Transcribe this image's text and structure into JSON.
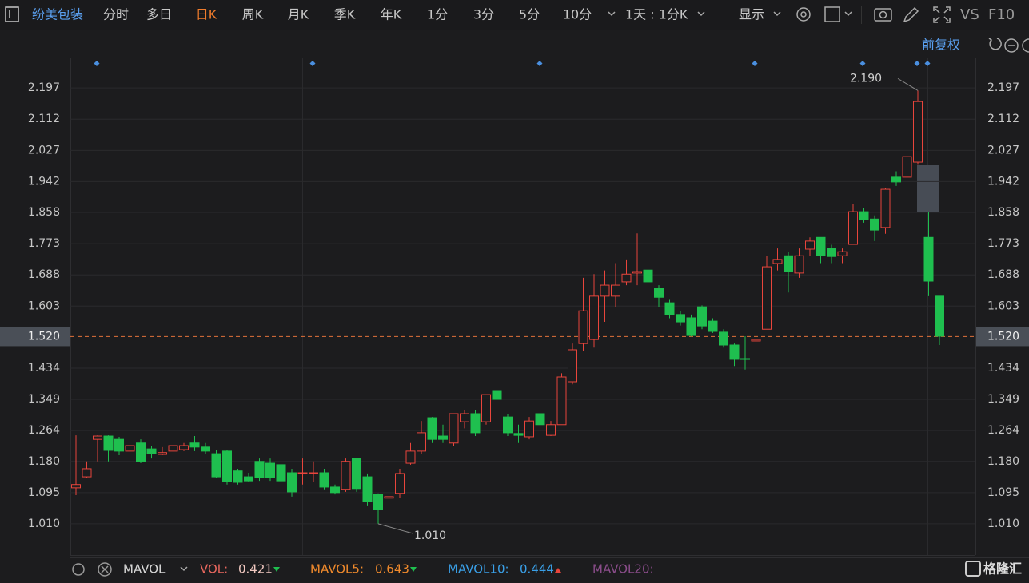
{
  "toolbar": {
    "stock": "纷美包装",
    "periods": [
      "分时",
      "多日",
      "日K",
      "周K",
      "月K",
      "季K",
      "年K",
      "1分",
      "3分",
      "5分",
      "10分"
    ],
    "active": 2,
    "interval": "1天 : 1分K",
    "display": "显示",
    "vs": "VS",
    "f10": "F10"
  },
  "adjust": "前复权",
  "chart_data": {
    "type": "candlestick",
    "up_color": "#e8453c",
    "down_color": "#1fbf4f",
    "grid": true,
    "ylim": [
      0.925,
      2.28
    ],
    "yticks": [
      2.197,
      2.112,
      2.027,
      1.942,
      1.858,
      1.773,
      1.688,
      1.603,
      {
        "value": 1.52,
        "label": "1.520"
      },
      1.434,
      1.349,
      1.264,
      {
        "value": 1.18,
        "label": "1.180"
      },
      1.095,
      {
        "value": 1.01,
        "label": "1.010"
      }
    ],
    "reference_line": {
      "value": 1.52,
      "color": "#e0703a"
    },
    "annotations": [
      {
        "value": 2.19,
        "label": "2.190"
      },
      {
        "value": 1.01,
        "label": "1.010"
      }
    ],
    "open": [
      1.108,
      1.138,
      1.24,
      1.249,
      1.24,
      1.208,
      1.23,
      1.214,
      1.199,
      1.208,
      1.212,
      1.23,
      1.219,
      1.201,
      1.208,
      1.154,
      1.138,
      1.18,
      1.175,
      1.171,
      1.149,
      1.147,
      1.147,
      1.149,
      1.11,
      1.104,
      1.188,
      1.138,
      1.09,
      1.08,
      1.093,
      1.175,
      1.208,
      1.299,
      1.249,
      1.23,
      1.288,
      1.31,
      1.288,
      1.373,
      1.301,
      1.256,
      1.247,
      1.31,
      1.251,
      1.28,
      1.397,
      1.501,
      1.512,
      1.63,
      1.63,
      1.669,
      1.693,
      1.701,
      1.651,
      1.612,
      1.58,
      1.571,
      1.601,
      1.562,
      1.532,
      1.497,
      1.46,
      1.508,
      1.54,
      1.719,
      1.74,
      1.693,
      1.758,
      1.79,
      1.76,
      1.74,
      1.771,
      1.86,
      1.84,
      1.817,
      1.954,
      1.954,
      1.995,
      1.79,
      1.63
    ],
    "high": [
      1.251,
      1.18,
      1.251,
      1.251,
      1.247,
      1.23,
      1.24,
      1.223,
      1.219,
      1.24,
      1.23,
      1.249,
      1.23,
      1.212,
      1.212,
      1.16,
      1.149,
      1.188,
      1.188,
      1.18,
      1.16,
      1.188,
      1.18,
      1.16,
      1.117,
      1.188,
      1.188,
      1.147,
      1.093,
      1.097,
      1.16,
      1.23,
      1.29,
      1.301,
      1.28,
      1.31,
      1.32,
      1.32,
      1.362,
      1.38,
      1.31,
      1.28,
      1.301,
      1.32,
      1.29,
      1.42,
      1.501,
      1.68,
      1.69,
      1.7,
      1.72,
      1.73,
      1.801,
      1.72,
      1.66,
      1.62,
      1.59,
      1.58,
      1.605,
      1.57,
      1.54,
      1.501,
      1.521,
      1.52,
      1.74,
      1.76,
      1.75,
      1.76,
      1.79,
      1.79,
      1.77,
      1.76,
      1.88,
      1.87,
      1.85,
      1.925,
      1.97,
      2.03,
      2.19,
      1.86,
      1.63
    ],
    "low": [
      1.088,
      1.136,
      1.18,
      1.18,
      1.197,
      1.199,
      1.175,
      1.188,
      1.197,
      1.199,
      1.208,
      1.208,
      1.201,
      1.136,
      1.117,
      1.117,
      1.123,
      1.127,
      1.127,
      1.11,
      1.084,
      1.117,
      1.123,
      1.104,
      1.09,
      1.097,
      1.097,
      1.06,
      1.01,
      1.071,
      1.08,
      1.171,
      1.199,
      1.23,
      1.23,
      1.223,
      1.27,
      1.249,
      1.28,
      1.301,
      1.249,
      1.23,
      1.24,
      1.27,
      1.249,
      1.28,
      1.39,
      1.48,
      1.49,
      1.56,
      1.6,
      1.66,
      1.66,
      1.66,
      1.6,
      1.57,
      1.55,
      1.52,
      1.54,
      1.53,
      1.49,
      1.44,
      1.43,
      1.377,
      1.54,
      1.7,
      1.64,
      1.68,
      1.74,
      1.72,
      1.72,
      1.72,
      1.771,
      1.83,
      1.78,
      1.8,
      1.93,
      1.945,
      1.99,
      1.63,
      1.497
    ],
    "close": [
      1.117,
      1.16,
      1.249,
      1.21,
      1.208,
      1.223,
      1.18,
      1.201,
      1.204,
      1.223,
      1.223,
      1.219,
      1.208,
      1.138,
      1.125,
      1.123,
      1.127,
      1.136,
      1.136,
      1.127,
      1.097,
      1.149,
      1.149,
      1.11,
      1.095,
      1.18,
      1.106,
      1.071,
      1.049,
      1.084,
      1.147,
      1.208,
      1.258,
      1.24,
      1.24,
      1.31,
      1.31,
      1.258,
      1.362,
      1.349,
      1.258,
      1.251,
      1.29,
      1.28,
      1.28,
      1.41,
      1.484,
      1.59,
      1.63,
      1.66,
      1.66,
      1.69,
      1.697,
      1.669,
      1.627,
      1.58,
      1.56,
      1.523,
      1.549,
      1.534,
      1.497,
      1.458,
      1.458,
      1.512,
      1.71,
      1.73,
      1.697,
      1.74,
      1.78,
      1.74,
      1.738,
      1.751,
      1.86,
      1.838,
      1.81,
      1.921,
      1.941,
      2.01,
      2.16,
      1.671,
      1.521
    ]
  },
  "indicator": {
    "name": "MAVOL",
    "items": [
      {
        "label": "VOL:",
        "value": 0.421,
        "color": "#e8675e",
        "trend": "down"
      },
      {
        "label": "MAVOL5:",
        "value": 0.643,
        "color": "#f08a2c",
        "trend": "down"
      },
      {
        "label": "MAVOL10:",
        "value": 0.444,
        "color": "#3aa0e8",
        "trend": "up"
      },
      {
        "label": "MAVOL20:",
        "color": "#8b4d8b"
      }
    ]
  },
  "brand": "格隆汇"
}
